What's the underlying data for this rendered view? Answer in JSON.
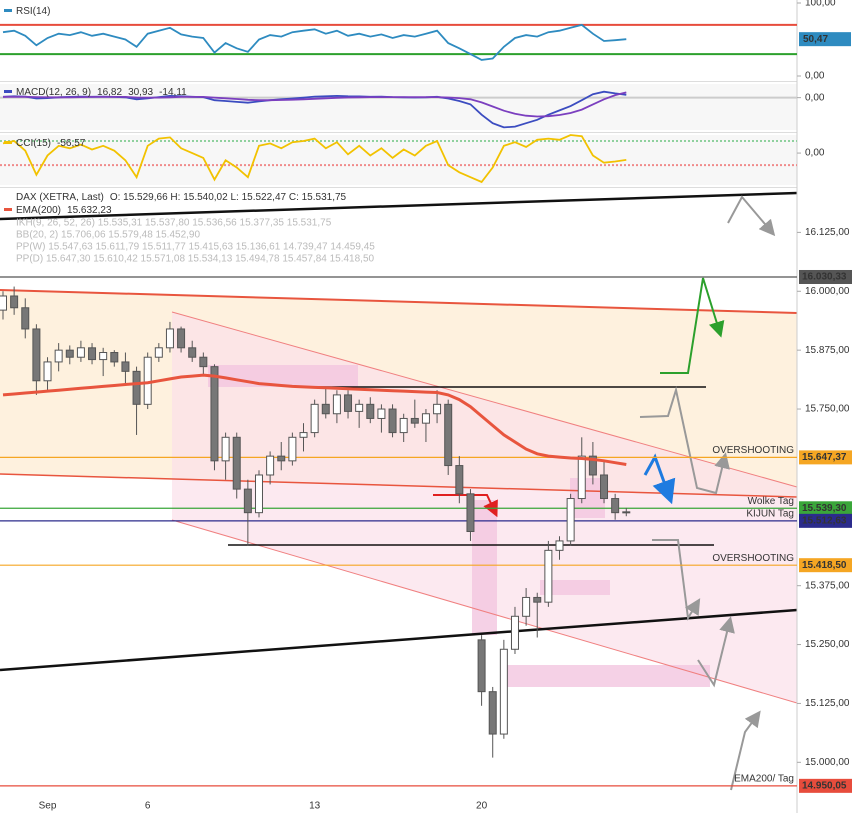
{
  "chart_data": [
    {
      "type": "line",
      "title": "RSI(14)",
      "ylim": [
        0,
        100
      ],
      "yticks": [
        {
          "value": 100,
          "label": "100,00"
        },
        {
          "value": 0,
          "label": "0,00"
        }
      ],
      "levels": [
        {
          "value": 70,
          "color": "#e74c3c"
        },
        {
          "value": 30,
          "color": "#2ca02c"
        }
      ],
      "series": [
        {
          "name": "50,47",
          "color": "#2e8bc0",
          "tag": true,
          "values": [
            60,
            62,
            55,
            42,
            52,
            58,
            56,
            60,
            55,
            58,
            54,
            50,
            40,
            58,
            62,
            66,
            57,
            54,
            52,
            32,
            45,
            38,
            33,
            50,
            56,
            54,
            60,
            62,
            64,
            58,
            62,
            55,
            58,
            54,
            57,
            52,
            56,
            54,
            58,
            62,
            45,
            38,
            30,
            22,
            24,
            40,
            52,
            56,
            54,
            60,
            62,
            66,
            70,
            58,
            48,
            49,
            50.47
          ]
        }
      ]
    },
    {
      "type": "line",
      "title": "MACD(12, 26, 9)",
      "readout": [
        "16,82",
        "30,93",
        "-14,11"
      ],
      "ylim": [
        -190,
        80
      ],
      "yticks": [
        {
          "value": 0,
          "label": "0,00"
        }
      ],
      "levels": [
        {
          "value": 0,
          "color": "#cccccc"
        }
      ],
      "series": [
        {
          "name": "MACD",
          "color": "#3b4cc0",
          "values": [
            5,
            8,
            6,
            -5,
            -3,
            2,
            4,
            6,
            5,
            6,
            4,
            2,
            -10,
            -4,
            3,
            10,
            8,
            5,
            3,
            -15,
            -20,
            -25,
            -30,
            -22,
            -15,
            -10,
            -5,
            0,
            6,
            8,
            10,
            8,
            7,
            5,
            6,
            3,
            2,
            1,
            2,
            5,
            -5,
            -20,
            -40,
            -100,
            -150,
            -175,
            -170,
            -150,
            -130,
            -100,
            -75,
            -50,
            -15,
            20,
            35,
            25,
            16.82
          ]
        },
        {
          "name": "Signal",
          "color": "#7b3fbf",
          "values": [
            4,
            5,
            5,
            3,
            2,
            2,
            2,
            3,
            4,
            4,
            4,
            4,
            1,
            0,
            0,
            2,
            4,
            4,
            4,
            0,
            -4,
            -8,
            -13,
            -15,
            -15,
            -14,
            -12,
            -10,
            -7,
            -4,
            -1,
            1,
            2,
            3,
            3,
            3,
            3,
            3,
            3,
            3,
            1,
            -3,
            -10,
            -28,
            -52,
            -77,
            -95,
            -106,
            -111,
            -109,
            -102,
            -90,
            -70,
            -40,
            -10,
            15,
            30.93
          ]
        }
      ]
    },
    {
      "type": "line",
      "title": "CCI(15)",
      "readout": [
        "-56,57"
      ],
      "ylim": [
        -265,
        150
      ],
      "yticks": [
        {
          "value": 0,
          "label": "0,00"
        }
      ],
      "levels": [
        {
          "value": 100,
          "color": "#8fd19e"
        },
        {
          "value": -100,
          "color": "#f08a8a"
        }
      ],
      "series": [
        {
          "name": "CCI",
          "color": "#f2c200",
          "values": [
            80,
            100,
            20,
            -180,
            -20,
            60,
            40,
            70,
            30,
            60,
            20,
            -60,
            -200,
            60,
            120,
            130,
            40,
            0,
            -40,
            -220,
            -60,
            -120,
            -200,
            60,
            80,
            40,
            90,
            100,
            120,
            40,
            90,
            -10,
            60,
            -20,
            40,
            -40,
            30,
            -20,
            60,
            100,
            -100,
            -160,
            -200,
            -240,
            -120,
            60,
            90,
            50,
            110,
            120,
            110,
            150,
            140,
            -20,
            -80,
            -70,
            -56.57
          ]
        }
      ]
    },
    {
      "type": "candlestick",
      "title": "DAX (XETRA, Last)",
      "ohlc_label": "O: 15.529,66  H: 15.540,02  L: 15.522,47  C: 15.531,75",
      "indicators": [
        "IKH(9, 26, 52, 26)  15.535,31  15.537,80  15.536,56  15.377,35  15.531,75",
        "BB(20, 2)  15.706,06  15.579,48  15.452,90",
        "PP(W)  15.547,63  15.611,79  15.511,77  15.415,63  15.136,61  14.739,47  14.459,45",
        "PP(D)  15.647,30  15.610,42  15.571,08  15.534,13  15.494,78  15.457,84  15.418,50"
      ],
      "categories": [
        null,
        null,
        null,
        null,
        "Sep",
        null,
        null,
        null,
        null,
        null,
        null,
        null,
        null,
        "6",
        null,
        null,
        null,
        null,
        null,
        null,
        null,
        null,
        null,
        null,
        null,
        null,
        null,
        null,
        "13",
        null,
        null,
        null,
        null,
        null,
        null,
        null,
        null,
        null,
        null,
        null,
        null,
        null,
        null,
        "20",
        null,
        null,
        null,
        null,
        null,
        null,
        null,
        null,
        null,
        null,
        null,
        null,
        null
      ],
      "ylim": [
        14920,
        16215
      ],
      "yticks": [
        {
          "value": 16125,
          "label": "16.125,00"
        },
        {
          "value": 16000,
          "label": "16.000,00"
        },
        {
          "value": 15875,
          "label": "15.875,00"
        },
        {
          "value": 15750,
          "label": "15.750,00"
        },
        {
          "value": 15375,
          "label": "15.375,00"
        },
        {
          "value": 15250,
          "label": "15.250,00"
        },
        {
          "value": 15125,
          "label": "15.125,00"
        },
        {
          "value": 15000,
          "label": "15.000,00"
        }
      ],
      "open": [
        15960,
        15990,
        15965,
        15920,
        15810,
        15850,
        15875,
        15860,
        15880,
        15855,
        15870,
        15850,
        15830,
        15760,
        15860,
        15880,
        15920,
        15880,
        15860,
        15840,
        15640,
        15690,
        15580,
        15530,
        15610,
        15650,
        15640,
        15690,
        15700,
        15760,
        15740,
        15780,
        15745,
        15760,
        15730,
        15750,
        15700,
        15730,
        15720,
        15740,
        15760,
        15630,
        15570,
        15260,
        15150,
        15060,
        15240,
        15310,
        15350,
        15340,
        15450,
        15470,
        15560,
        15650,
        15610,
        15560,
        15529.66
      ],
      "high": [
        16000,
        16010,
        15985,
        15930,
        15860,
        15890,
        15885,
        15895,
        15890,
        15880,
        15875,
        15870,
        15840,
        15870,
        15890,
        15935,
        15925,
        15895,
        15870,
        15845,
        15700,
        15700,
        15600,
        15620,
        15660,
        15680,
        15700,
        15720,
        15770,
        15795,
        15790,
        15790,
        15770,
        15775,
        15760,
        15760,
        15740,
        15770,
        15750,
        15790,
        15770,
        15650,
        15580,
        15270,
        15160,
        15260,
        15330,
        15370,
        15360,
        15470,
        15480,
        15570,
        15690,
        15680,
        15640,
        15570,
        15540.02
      ],
      "low": [
        15940,
        15950,
        15900,
        15780,
        15790,
        15830,
        15845,
        15850,
        15845,
        15820,
        15840,
        15800,
        15695,
        15750,
        15850,
        15870,
        15870,
        15850,
        15820,
        15620,
        15600,
        15560,
        15460,
        15520,
        15590,
        15620,
        15630,
        15660,
        15690,
        15730,
        15720,
        15730,
        15710,
        15720,
        15700,
        15690,
        15680,
        15710,
        15680,
        15720,
        15610,
        15550,
        15470,
        15120,
        15010,
        15050,
        15230,
        15290,
        15265,
        15330,
        15430,
        15460,
        15550,
        15590,
        15550,
        15515,
        15522.47
      ],
      "close": [
        15990,
        15965,
        15920,
        15810,
        15850,
        15875,
        15860,
        15880,
        15855,
        15870,
        15850,
        15830,
        15760,
        15860,
        15880,
        15920,
        15880,
        15860,
        15840,
        15640,
        15690,
        15580,
        15530,
        15610,
        15650,
        15640,
        15690,
        15700,
        15760,
        15740,
        15780,
        15745,
        15760,
        15730,
        15750,
        15700,
        15730,
        15720,
        15740,
        15760,
        15630,
        15570,
        15490,
        15150,
        15060,
        15240,
        15310,
        15350,
        15340,
        15450,
        15470,
        15560,
        15650,
        15610,
        15560,
        15530,
        15531.75
      ],
      "series": [
        {
          "name": "EMA(200)",
          "value_label": "15.632,23",
          "color": "#e8553e",
          "values": [
            15780,
            15782,
            15784,
            15786,
            15788,
            15790,
            15792,
            15794,
            15796,
            15798,
            15800,
            15802,
            15804,
            15806,
            15810,
            15814,
            15818,
            15820,
            15822,
            15820,
            15816,
            15812,
            15808,
            15804,
            15802,
            15800,
            15798,
            15797,
            15796,
            15795,
            15794,
            15793,
            15792,
            15791,
            15790,
            15789,
            15788,
            15787,
            15786,
            15785,
            15780,
            15770,
            15755,
            15735,
            15715,
            15695,
            15680,
            15665,
            15655,
            15650,
            15648,
            15646,
            15645,
            15643,
            15640,
            15636,
            15632.23
          ]
        }
      ],
      "levels": [
        {
          "value": 16030.33,
          "label": "16.030,33",
          "color": "#555555"
        },
        {
          "value": 15647.37,
          "label": "15.647,37",
          "color": "#f5a623",
          "note": "OVERSHOOTING"
        },
        {
          "value": 15539.3,
          "label": "15.539,30",
          "color": "#3aa63a",
          "note": "Wolke Tag"
        },
        {
          "value": 15512.63,
          "label": "15.512,63",
          "color": "#2b2b8c",
          "note": "KIJUN Tag"
        },
        {
          "value": 15418.5,
          "label": "15.418,50",
          "color": "#f5a623",
          "note": "OVERSHOOTING"
        },
        {
          "value": 14950.05,
          "label": "14.950,05",
          "color": "#e74c3c",
          "note": "EMA200/ Tag"
        }
      ]
    }
  ]
}
